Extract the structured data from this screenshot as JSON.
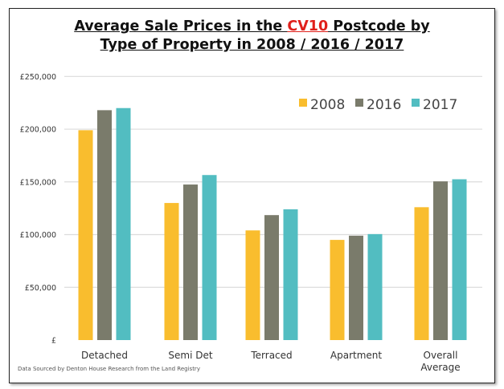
{
  "chart_data": {
    "type": "bar",
    "title_line1_pre": "Average Sale Prices in the ",
    "title_highlight": "CV10",
    "title_line1_post": " Postcode by",
    "title_line2": "Type of Property in 2008 / 2016 / 2017",
    "categories": [
      "Detached",
      "Semi Det",
      "Terraced",
      "Apartment",
      "Overall Average"
    ],
    "series": [
      {
        "name": "2008",
        "color": "#f9bd2e",
        "values": [
          199000,
          130000,
          104000,
          95000,
          126000
        ]
      },
      {
        "name": "2016",
        "color": "#7a7b6b",
        "values": [
          218000,
          147500,
          118500,
          99000,
          150500
        ]
      },
      {
        "name": "2017",
        "color": "#52bdc1",
        "values": [
          220000,
          156500,
          124000,
          100500,
          152500
        ]
      }
    ],
    "ylim": [
      0,
      250000
    ],
    "yticks": [
      0,
      50000,
      100000,
      150000,
      200000,
      250000
    ],
    "ytick_labels": [
      "£",
      "£50,000",
      "£100,000",
      "£150,000",
      "£200,000",
      "£250,000"
    ],
    "grid": true,
    "legend_placement": "top-right",
    "highlight_color": "#e0201b",
    "source_note": "Data Sourced by Denton House Research from the Land Registry"
  }
}
